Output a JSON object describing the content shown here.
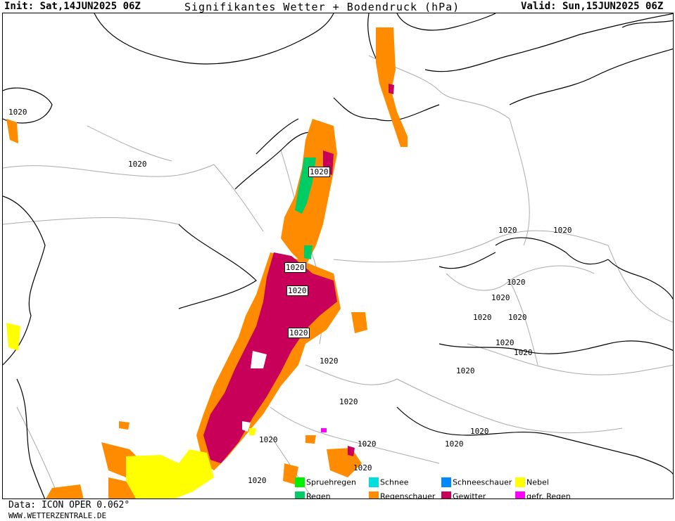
{
  "header": {
    "init": "Init: Sat,14JUN2025 06Z",
    "title": "Signifikantes Wetter + Bodendruck (hPa)",
    "valid": "Valid: Sun,15JUN2025 06Z"
  },
  "isobar_label": "1020",
  "legend": [
    {
      "label": "Spruehregen",
      "color": "#00ee00"
    },
    {
      "label": "Regen",
      "color": "#00cc66"
    },
    {
      "label": "Schnee",
      "color": "#00dddd"
    },
    {
      "label": "Regenschauer",
      "color": "#ff8c00"
    },
    {
      "label": "Schneeschauer",
      "color": "#0088ff"
    },
    {
      "label": "Gewitter",
      "color": "#c8005a"
    },
    {
      "label": "Nebel",
      "color": "#ffff00"
    },
    {
      "label": "gefr. Regen",
      "color": "#ff00ff"
    }
  ],
  "footer": {
    "data_source": "Data: ICON OPER 0.062°",
    "website": "WWW.WETTERZENTRALE.DE"
  },
  "colors": {
    "showers": "#ff8c00",
    "thunderstorm": "#c8005a",
    "rain": "#00cc66",
    "fog": "#ffff00",
    "freezing_rain": "#ff00ff",
    "coast": "#000000",
    "border": "#aaaaaa"
  }
}
